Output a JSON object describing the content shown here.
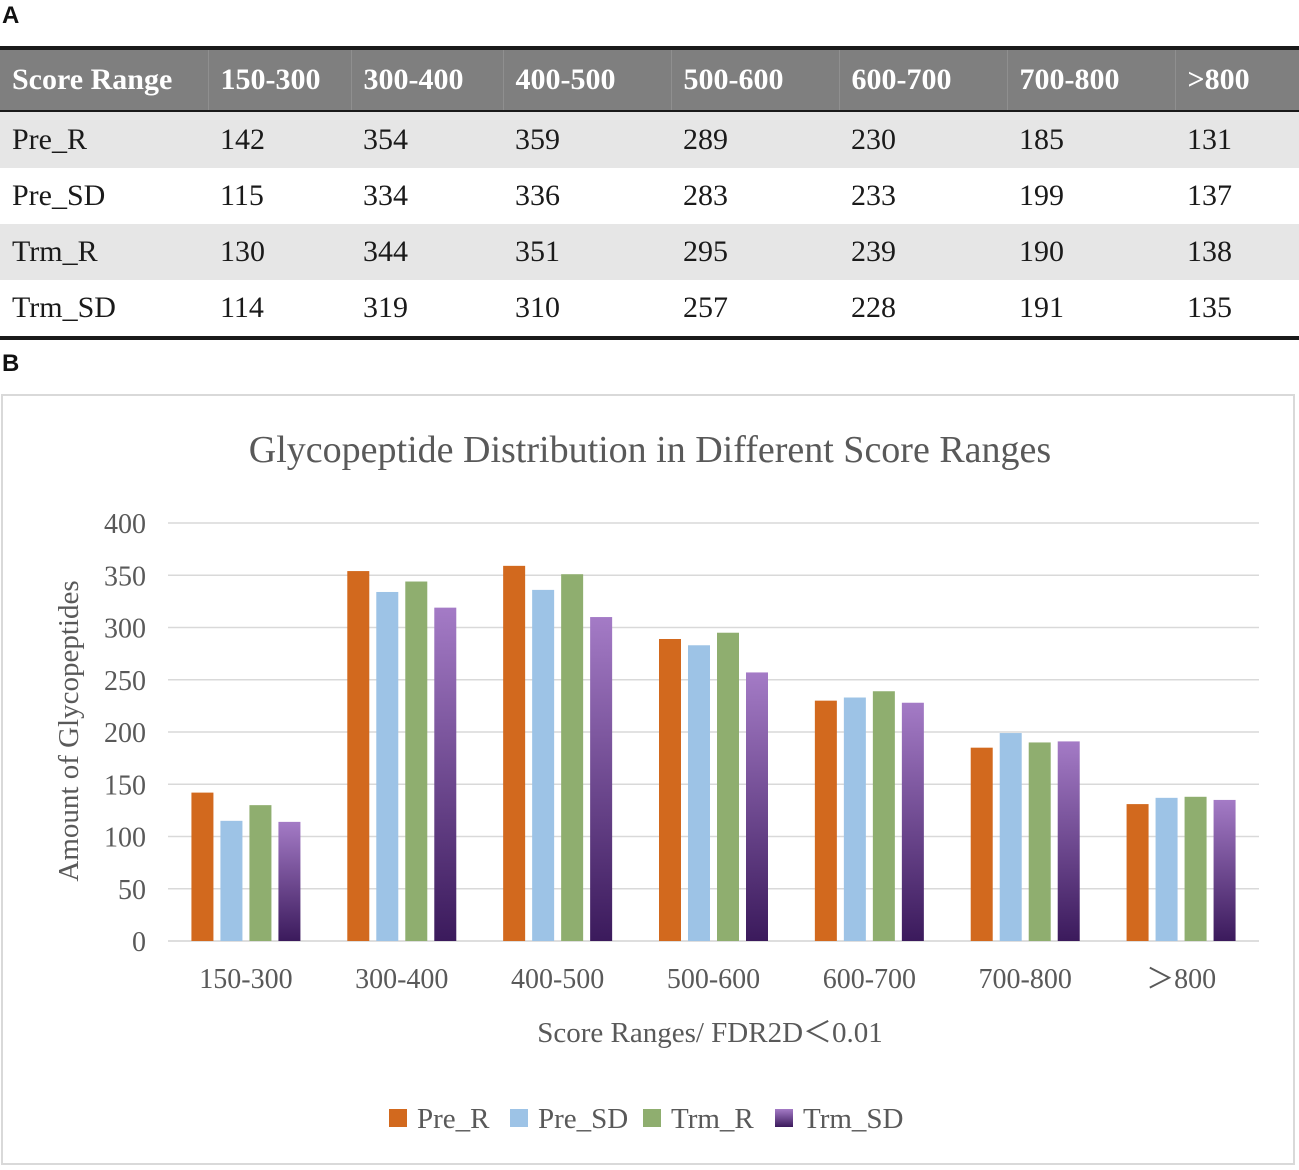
{
  "panel_a_label": "A",
  "panel_b_label": "B",
  "table": {
    "header": [
      "Score Range",
      "150-300",
      "300-400",
      "400-500",
      "500-600",
      "600-700",
      "700-800",
      ">800"
    ],
    "rows": [
      [
        "Pre_R",
        "142",
        "354",
        "359",
        "289",
        "230",
        "185",
        "131"
      ],
      [
        "Pre_SD",
        "115",
        "334",
        "336",
        "283",
        "233",
        "199",
        "137"
      ],
      [
        "Trm_R",
        "130",
        "344",
        "351",
        "295",
        "239",
        "190",
        "138"
      ],
      [
        "Trm_SD",
        "114",
        "319",
        "310",
        "257",
        "228",
        "191",
        "135"
      ]
    ]
  },
  "colors": {
    "Pre_R": "#d2691e",
    "Pre_SD": "#9dc3e6",
    "Trm_R": "#8fae6f",
    "Trm_SD_top": "#a47bc6",
    "Trm_SD_bottom": "#3b1a5c",
    "grid": "#d9d9d9",
    "axis_text": "#595959"
  },
  "chart_data": {
    "type": "bar",
    "title": "Glycopeptide Distribution in Different Score Ranges",
    "xlabel": "Score Ranges/ FDR2D＜0.01",
    "ylabel": "Amount of Glycopeptides",
    "ylim": [
      0,
      400
    ],
    "yticks": [
      0,
      50,
      100,
      150,
      200,
      250,
      300,
      350,
      400
    ],
    "grid": true,
    "legend_position": "bottom",
    "categories": [
      "150-300",
      "300-400",
      "400-500",
      "500-600",
      "600-700",
      "700-800",
      "＞800"
    ],
    "series": [
      {
        "name": "Pre_R",
        "values": [
          142,
          354,
          359,
          289,
          230,
          185,
          131
        ]
      },
      {
        "name": "Pre_SD",
        "values": [
          115,
          334,
          336,
          283,
          233,
          199,
          137
        ]
      },
      {
        "name": "Trm_R",
        "values": [
          130,
          344,
          351,
          295,
          239,
          190,
          138
        ]
      },
      {
        "name": "Trm_SD",
        "values": [
          114,
          319,
          310,
          257,
          228,
          191,
          135
        ]
      }
    ]
  }
}
